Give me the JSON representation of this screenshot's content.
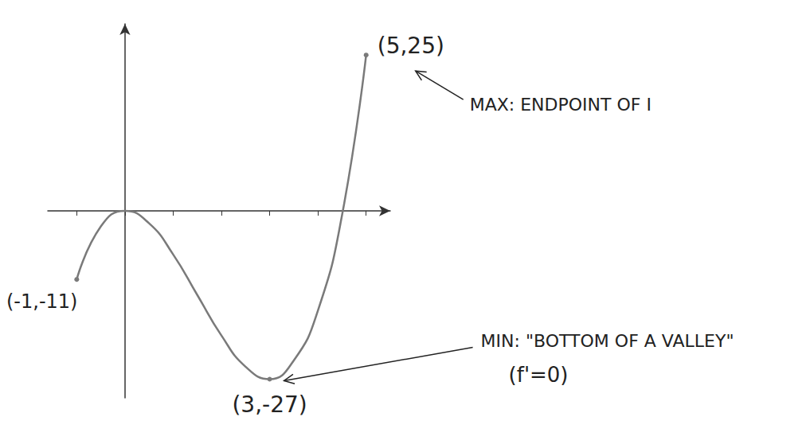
{
  "chart_data": {
    "type": "line",
    "x": [
      -1,
      -0.5,
      0,
      0.5,
      1,
      1.5,
      2,
      2.5,
      3,
      3.5,
      4,
      4.5,
      5
    ],
    "values": [
      -11,
      -2.5,
      0,
      -2,
      -7,
      -13.5,
      -20,
      -25,
      -27,
      -24,
      -16,
      -0.7,
      25
    ],
    "color": "#7a7a7a",
    "xlim": [
      -1.6,
      5.5
    ],
    "xticks": [
      -1,
      0,
      1,
      2,
      3,
      4,
      5
    ],
    "ylim": [
      -30,
      30
    ],
    "yticks": [],
    "grid": false,
    "tick_labels": false,
    "annotations": [
      {
        "x": 5,
        "y": 25,
        "label": "(5,25)",
        "note": "MAX: ENDPOINT OF I"
      },
      {
        "x": 3,
        "y": -27,
        "label": "(3,-27)",
        "note": "MIN: \"BOTTOM OF A VALLEY\"",
        "condition": "(f'=0)"
      },
      {
        "x": -1,
        "y": -11,
        "label": "(-1,-11)"
      }
    ]
  }
}
